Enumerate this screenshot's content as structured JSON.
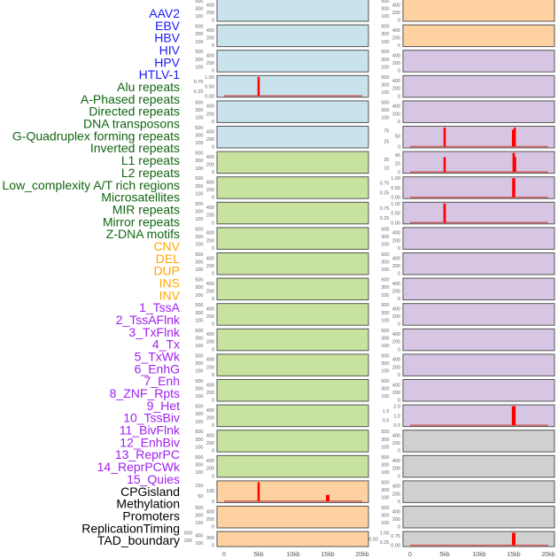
{
  "chart_data": {
    "type": "bar",
    "title": "",
    "xlabel": "",
    "x_ticks": [
      "0",
      "5kb",
      "10kb",
      "15kb",
      "20kb"
    ],
    "xlim_kb": [
      0,
      20
    ],
    "label_colors": {
      "virus": "#1a1aff",
      "repeat": "#116611",
      "sv": "#ffa500",
      "chromhmm": "#a020f0",
      "other": "#000000"
    },
    "bg_colors": {
      "virus": "#c8e3eb",
      "repeat": "#c8e2a0",
      "sv": "#fdd1a0",
      "chromhmm": "#d6c6e3",
      "other": "#d0d0d0"
    },
    "bar_color": "#ff0000",
    "labels": [
      {
        "text": "AAV2",
        "group": "virus"
      },
      {
        "text": "EBV",
        "group": "virus"
      },
      {
        "text": "HBV",
        "group": "virus"
      },
      {
        "text": "HIV",
        "group": "virus"
      },
      {
        "text": "HPV",
        "group": "virus"
      },
      {
        "text": "HTLV-1",
        "group": "virus"
      },
      {
        "text": "Alu repeats",
        "group": "repeat"
      },
      {
        "text": "A-Phased repeats",
        "group": "repeat"
      },
      {
        "text": "Directed repeats",
        "group": "repeat"
      },
      {
        "text": "DNA transposons",
        "group": "repeat"
      },
      {
        "text": "G-Quadruplex forming repeats",
        "group": "repeat"
      },
      {
        "text": "Inverted repeats",
        "group": "repeat"
      },
      {
        "text": "L1 repeats",
        "group": "repeat"
      },
      {
        "text": "L2 repeats",
        "group": "repeat"
      },
      {
        "text": "Low_complexity A/T rich regions",
        "group": "repeat"
      },
      {
        "text": "Microsatellites",
        "group": "repeat"
      },
      {
        "text": "MIR repeats",
        "group": "repeat"
      },
      {
        "text": "Mirror repeats",
        "group": "repeat"
      },
      {
        "text": "Z-DNA motifs",
        "group": "repeat"
      },
      {
        "text": "CNV",
        "group": "sv"
      },
      {
        "text": "DEL",
        "group": "sv"
      },
      {
        "text": "DUP",
        "group": "sv"
      },
      {
        "text": "INS",
        "group": "sv"
      },
      {
        "text": "INV",
        "group": "sv"
      },
      {
        "text": "1_TssA",
        "group": "chromhmm"
      },
      {
        "text": "2_TssAFlnk",
        "group": "chromhmm"
      },
      {
        "text": "3_TxFlnk",
        "group": "chromhmm"
      },
      {
        "text": "4_Tx",
        "group": "chromhmm"
      },
      {
        "text": "5_TxWk",
        "group": "chromhmm"
      },
      {
        "text": "6_EnhG",
        "group": "chromhmm"
      },
      {
        "text": "7_Enh",
        "group": "chromhmm"
      },
      {
        "text": "8_ZNF_Rpts",
        "group": "chromhmm"
      },
      {
        "text": "9_Het",
        "group": "chromhmm"
      },
      {
        "text": "10_TssBiv",
        "group": "chromhmm"
      },
      {
        "text": "11_BivFlnk",
        "group": "chromhmm"
      },
      {
        "text": "12_EnhBiv",
        "group": "chromhmm"
      },
      {
        "text": "13_ReprPC",
        "group": "chromhmm"
      },
      {
        "text": "14_ReprPCWk",
        "group": "chromhmm"
      },
      {
        "text": "15_Quies",
        "group": "chromhmm"
      },
      {
        "text": "CPGisland",
        "group": "other"
      },
      {
        "text": "Methylation",
        "group": "other"
      },
      {
        "text": "Promoters",
        "group": "other"
      },
      {
        "text": "ReplicationTiming",
        "group": "other"
      },
      {
        "text": "TAD_boundary",
        "group": "other"
      }
    ],
    "default_yticks": [
      "0",
      "100",
      "200",
      "300",
      "400",
      "500"
    ],
    "default_ymax": 500,
    "panels": [
      {
        "col": 0,
        "row": 0,
        "group": "virus"
      },
      {
        "col": 0,
        "row": 1,
        "group": "virus"
      },
      {
        "col": 0,
        "row": 2,
        "group": "virus"
      },
      {
        "col": 0,
        "row": 3,
        "group": "virus",
        "yticks": [
          "0.00",
          "0.25",
          "0.50",
          "0.75",
          "1.00"
        ],
        "ymax": 1.0,
        "bars": [
          {
            "x_kb": 5.0,
            "value": 1.0,
            "width_kb": 0.3
          }
        ]
      },
      {
        "col": 0,
        "row": 4,
        "group": "virus"
      },
      {
        "col": 0,
        "row": 5,
        "group": "virus"
      },
      {
        "col": 0,
        "row": 6,
        "group": "repeat"
      },
      {
        "col": 0,
        "row": 7,
        "group": "repeat"
      },
      {
        "col": 0,
        "row": 8,
        "group": "repeat"
      },
      {
        "col": 0,
        "row": 9,
        "group": "repeat"
      },
      {
        "col": 0,
        "row": 10,
        "group": "repeat"
      },
      {
        "col": 0,
        "row": 11,
        "group": "repeat"
      },
      {
        "col": 0,
        "row": 12,
        "group": "repeat"
      },
      {
        "col": 0,
        "row": 13,
        "group": "repeat"
      },
      {
        "col": 0,
        "row": 14,
        "group": "repeat"
      },
      {
        "col": 0,
        "row": 15,
        "group": "repeat"
      },
      {
        "col": 0,
        "row": 16,
        "group": "repeat"
      },
      {
        "col": 0,
        "row": 17,
        "group": "repeat"
      },
      {
        "col": 0,
        "row": 18,
        "group": "repeat"
      },
      {
        "col": 0,
        "row": 19,
        "group": "sv",
        "yticks": [
          "0",
          "50",
          "100",
          "150"
        ],
        "ymax": 180,
        "bars": [
          {
            "x_kb": 5.0,
            "value": 180,
            "width_kb": 0.3
          },
          {
            "x_kb": 15.0,
            "value": 60,
            "width_kb": 0.5
          }
        ]
      },
      {
        "col": 0,
        "row": 20,
        "group": "sv"
      },
      {
        "col": 0,
        "row": 21,
        "group": "sv",
        "short": true
      },
      {
        "col": 1,
        "row": 0,
        "group": "sv"
      },
      {
        "col": 1,
        "row": 1,
        "group": "sv"
      },
      {
        "col": 1,
        "row": 2,
        "group": "chromhmm"
      },
      {
        "col": 1,
        "row": 3,
        "group": "chromhmm"
      },
      {
        "col": 1,
        "row": 4,
        "group": "chromhmm"
      },
      {
        "col": 1,
        "row": 5,
        "group": "chromhmm",
        "yticks": [
          "0",
          "25",
          "50",
          "75"
        ],
        "ymax": 90,
        "bars": [
          {
            "x_kb": 5.0,
            "value": 90,
            "width_kb": 0.3
          },
          {
            "x_kb": 14.9,
            "value": 80,
            "width_kb": 0.3
          },
          {
            "x_kb": 15.15,
            "value": 90,
            "width_kb": 0.3
          }
        ]
      },
      {
        "col": 1,
        "row": 6,
        "group": "chromhmm",
        "yticks": [
          "0",
          "10",
          "20",
          "30",
          "40"
        ],
        "ymax": 45,
        "bars": [
          {
            "x_kb": 5.0,
            "value": 35,
            "width_kb": 0.3
          },
          {
            "x_kb": 15.0,
            "value": 45,
            "width_kb": 0.35
          },
          {
            "x_kb": 15.2,
            "value": 35,
            "width_kb": 0.2
          }
        ]
      },
      {
        "col": 1,
        "row": 7,
        "group": "chromhmm",
        "yticks": [
          "0.00",
          "0.25",
          "0.50",
          "0.75",
          "1.00"
        ],
        "ymax": 1.0,
        "bars": [
          {
            "x_kb": 15.0,
            "value": 1.0,
            "width_kb": 0.45
          }
        ]
      },
      {
        "col": 1,
        "row": 8,
        "group": "chromhmm",
        "yticks": [
          "0.00",
          "0.25",
          "0.50",
          "0.75",
          "1.00"
        ],
        "ymax": 1.0,
        "bars": [
          {
            "x_kb": 5.0,
            "value": 1.0,
            "width_kb": 0.35
          }
        ]
      },
      {
        "col": 1,
        "row": 9,
        "group": "chromhmm"
      },
      {
        "col": 1,
        "row": 10,
        "group": "chromhmm"
      },
      {
        "col": 1,
        "row": 11,
        "group": "chromhmm"
      },
      {
        "col": 1,
        "row": 12,
        "group": "chromhmm"
      },
      {
        "col": 1,
        "row": 13,
        "group": "chromhmm"
      },
      {
        "col": 1,
        "row": 14,
        "group": "chromhmm"
      },
      {
        "col": 1,
        "row": 15,
        "group": "chromhmm"
      },
      {
        "col": 1,
        "row": 16,
        "group": "chromhmm",
        "yticks": [
          "0.0",
          "0.5",
          "1.0",
          "1.5",
          "2.0"
        ],
        "ymax": 2.0,
        "bars": [
          {
            "x_kb": 15.0,
            "value": 2.0,
            "width_kb": 0.55
          }
        ]
      },
      {
        "col": 1,
        "row": 17,
        "group": "other"
      },
      {
        "col": 1,
        "row": 18,
        "group": "other"
      },
      {
        "col": 1,
        "row": 19,
        "group": "other"
      },
      {
        "col": 1,
        "row": 20,
        "group": "other"
      },
      {
        "col": 1,
        "row": 21,
        "group": "other",
        "short": true,
        "yticks": [
          "0.00",
          "0.25",
          "0.50",
          "0.75",
          "1.00"
        ],
        "ymax": 1.0,
        "bars": [
          {
            "x_kb": 15.0,
            "value": 1.0,
            "width_kb": 0.5
          }
        ]
      }
    ]
  }
}
